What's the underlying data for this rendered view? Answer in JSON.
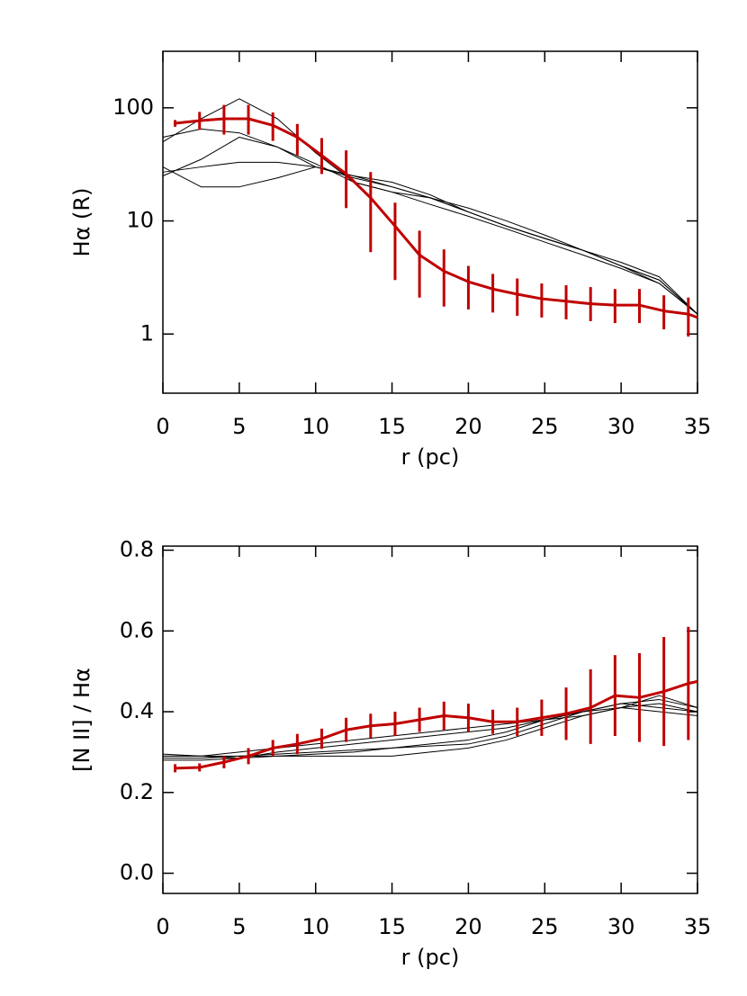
{
  "chart_data": [
    {
      "type": "line",
      "xlabel": "r (pc)",
      "ylabel": "Hα (R)",
      "log_y": true,
      "xlim": [
        0,
        35
      ],
      "ylim": [
        0.3,
        316
      ],
      "xticks": [
        0,
        5,
        10,
        15,
        20,
        25,
        30,
        35
      ],
      "yticks": [
        1,
        10,
        100
      ],
      "series": [
        {
          "color": "#000000",
          "x": [
            0,
            2.5,
            5,
            7.5,
            10,
            12.5,
            15,
            17.5,
            20,
            22.5,
            25,
            27.5,
            30,
            32.5,
            35
          ],
          "values": [
            50,
            80,
            120,
            80,
            40,
            22,
            18,
            16,
            13,
            10,
            7.5,
            5.5,
            4.3,
            3.2,
            1.5
          ]
        },
        {
          "color": "#000000",
          "x": [
            0,
            2.5,
            5,
            7.5,
            10,
            12.5,
            15,
            17.5,
            20,
            22.5,
            25,
            27.5,
            30,
            32.5,
            35
          ],
          "values": [
            55,
            65,
            60,
            45,
            30,
            24,
            20,
            16,
            12,
            9,
            7,
            5.5,
            4,
            3,
            1.5
          ]
        },
        {
          "color": "#000000",
          "x": [
            0,
            2.5,
            5,
            7.5,
            10,
            12.5,
            15,
            17.5,
            20,
            22.5,
            25,
            27.5,
            30,
            32.5,
            35
          ],
          "values": [
            25,
            35,
            55,
            45,
            32,
            22,
            18,
            14,
            11,
            8.5,
            6.5,
            5,
            3.8,
            2.8,
            1.5
          ]
        },
        {
          "color": "#000000",
          "x": [
            0,
            2.5,
            5,
            7.5,
            10,
            12.5,
            15,
            17.5,
            20,
            22.5,
            25,
            27.5,
            30,
            32.5,
            35
          ],
          "values": [
            27,
            30,
            33,
            33,
            30,
            25,
            20,
            16,
            12,
            9,
            7,
            5.5,
            4,
            2.8,
            1.5
          ]
        },
        {
          "color": "#000000",
          "x": [
            0,
            2.5,
            5,
            7.5,
            10,
            12.5,
            15,
            17.5,
            20,
            22.5,
            25,
            27.5,
            30,
            32.5,
            35
          ],
          "values": [
            30,
            20,
            20,
            24,
            30,
            25,
            22,
            17,
            12,
            9,
            7,
            5.5,
            4,
            3,
            1.5
          ]
        },
        {
          "color": "#c00000",
          "x": [
            0.8,
            2.4,
            4.0,
            5.6,
            7.2,
            8.8,
            10.4,
            12.0,
            13.6,
            15.2,
            16.8,
            18.4,
            20.0,
            21.6,
            23.2,
            24.8,
            26.4,
            28.0,
            29.6,
            31.2,
            32.8,
            34.4,
            35
          ],
          "values": [
            73,
            77,
            80,
            80,
            70,
            55,
            38,
            26,
            16,
            9,
            5,
            3.6,
            2.9,
            2.5,
            2.25,
            2.05,
            1.95,
            1.85,
            1.8,
            1.8,
            1.6,
            1.5,
            1.4
          ],
          "err_lower": [
            68,
            64,
            58,
            58,
            51,
            38,
            26,
            13,
            5.3,
            3.0,
            2.1,
            1.75,
            1.65,
            1.55,
            1.45,
            1.4,
            1.35,
            1.3,
            1.25,
            1.25,
            1.1,
            0.95,
            null
          ],
          "err_upper": [
            78,
            92,
            106,
            106,
            91,
            72,
            54,
            42,
            27,
            14.5,
            8.2,
            5.6,
            4.0,
            3.4,
            3.1,
            2.8,
            2.7,
            2.6,
            2.5,
            2.5,
            2.2,
            2.1,
            null
          ]
        }
      ]
    },
    {
      "type": "line",
      "xlabel": "r (pc)",
      "ylabel": "[N II] / Hα",
      "log_y": false,
      "xlim": [
        0,
        35
      ],
      "ylim": [
        -0.05,
        0.81
      ],
      "xticks": [
        0,
        5,
        10,
        15,
        20,
        25,
        30,
        35
      ],
      "yticks": [
        {
          "value": 0,
          "label": "0.0"
        },
        0.2,
        0.4,
        0.6,
        0.8
      ],
      "series": [
        {
          "color": "#000000",
          "x": [
            0,
            2.5,
            5,
            7.5,
            10,
            12.5,
            15,
            17.5,
            20,
            22.5,
            25,
            27.5,
            30,
            32.5,
            35
          ],
          "values": [
            0.29,
            0.29,
            0.29,
            0.29,
            0.29,
            0.29,
            0.29,
            0.3,
            0.31,
            0.33,
            0.36,
            0.39,
            0.41,
            0.42,
            0.4
          ]
        },
        {
          "color": "#000000",
          "x": [
            0,
            2.5,
            5,
            7.5,
            10,
            12.5,
            15,
            17.5,
            20,
            22.5,
            25,
            27.5,
            30,
            32.5,
            35
          ],
          "values": [
            0.28,
            0.28,
            0.285,
            0.3,
            0.31,
            0.32,
            0.33,
            0.34,
            0.35,
            0.36,
            0.38,
            0.4,
            0.42,
            0.43,
            0.41
          ]
        },
        {
          "color": "#000000",
          "x": [
            0,
            2.5,
            5,
            7.5,
            10,
            12.5,
            15,
            17.5,
            20,
            22.5,
            25,
            27.5,
            30,
            32.5,
            35
          ],
          "values": [
            0.29,
            0.29,
            0.3,
            0.31,
            0.32,
            0.33,
            0.34,
            0.35,
            0.36,
            0.37,
            0.38,
            0.39,
            0.41,
            0.44,
            0.41
          ]
        },
        {
          "color": "#000000",
          "x": [
            0,
            2.5,
            5,
            7.5,
            10,
            12.5,
            15,
            17.5,
            20,
            22.5,
            25,
            27.5,
            30,
            32.5,
            35
          ],
          "values": [
            0.285,
            0.285,
            0.29,
            0.295,
            0.3,
            0.305,
            0.31,
            0.315,
            0.32,
            0.34,
            0.37,
            0.4,
            0.42,
            0.41,
            0.4
          ]
        },
        {
          "color": "#000000",
          "x": [
            0,
            2.5,
            5,
            7.5,
            10,
            12.5,
            15,
            17.5,
            20,
            22.5,
            25,
            27.5,
            30,
            32.5,
            35
          ],
          "values": [
            0.295,
            0.29,
            0.285,
            0.29,
            0.295,
            0.3,
            0.31,
            0.32,
            0.33,
            0.35,
            0.38,
            0.4,
            0.41,
            0.4,
            0.39
          ]
        },
        {
          "color": "#c00000",
          "x": [
            0.8,
            2.4,
            4.0,
            5.6,
            7.2,
            8.8,
            10.4,
            12.0,
            13.6,
            15.2,
            16.8,
            18.4,
            20.0,
            21.6,
            23.2,
            24.8,
            26.4,
            28.0,
            29.6,
            31.2,
            32.8,
            34.4,
            35
          ],
          "values": [
            0.26,
            0.262,
            0.275,
            0.29,
            0.31,
            0.32,
            0.333,
            0.355,
            0.365,
            0.37,
            0.38,
            0.39,
            0.385,
            0.375,
            0.375,
            0.385,
            0.395,
            0.41,
            0.44,
            0.435,
            0.45,
            0.47,
            0.475
          ],
          "err_lower": [
            0.25,
            0.252,
            0.26,
            0.27,
            0.29,
            0.295,
            0.308,
            0.325,
            0.335,
            0.34,
            0.35,
            0.355,
            0.35,
            0.345,
            0.34,
            0.34,
            0.33,
            0.32,
            0.34,
            0.325,
            0.315,
            0.33,
            null
          ],
          "err_upper": [
            0.27,
            0.272,
            0.29,
            0.31,
            0.33,
            0.345,
            0.358,
            0.385,
            0.395,
            0.4,
            0.41,
            0.425,
            0.42,
            0.405,
            0.41,
            0.43,
            0.46,
            0.505,
            0.54,
            0.545,
            0.585,
            0.61,
            null
          ]
        }
      ]
    }
  ]
}
